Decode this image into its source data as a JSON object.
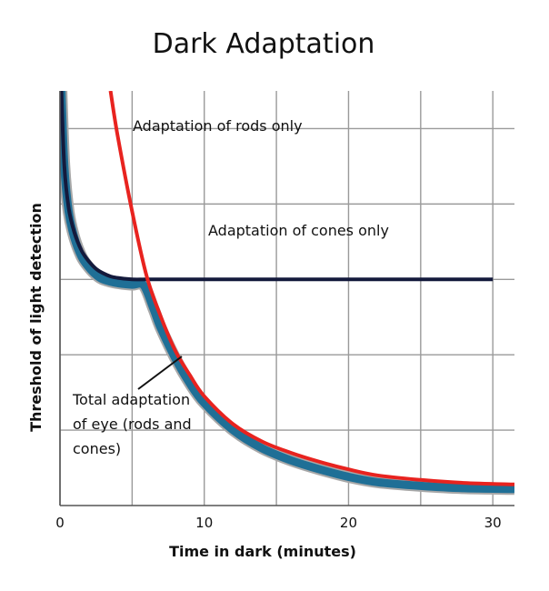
{
  "chart_data": {
    "type": "line",
    "title": "Dark Adaptation",
    "xlabel": "Time in dark (minutes)",
    "ylabel": "Threshold of light detection",
    "xlim": [
      0,
      31.5
    ],
    "ylim": [
      0,
      5.5
    ],
    "x_ticks": [
      0,
      10,
      20,
      30
    ],
    "x_grid": [
      0,
      5,
      10,
      15,
      20,
      25,
      30
    ],
    "y_grid": [
      1,
      2,
      3,
      4,
      5
    ],
    "grid": true,
    "y_tick_labels": false,
    "series": [
      {
        "name": "Adaptation of cones only",
        "color": "#141a3c",
        "x": [
          0.1,
          0.3,
          0.6,
          1,
          1.5,
          2,
          2.5,
          3,
          3.5,
          4,
          5,
          6,
          8,
          10,
          15,
          20,
          25,
          30
        ],
        "y": [
          5.5,
          4.5,
          3.95,
          3.62,
          3.38,
          3.24,
          3.14,
          3.08,
          3.04,
          3.02,
          3.0,
          3.0,
          3.0,
          3.0,
          3.0,
          3.0,
          3.0,
          3.0
        ]
      },
      {
        "name": "Adaptation of rods only",
        "color": "#e8231f",
        "x": [
          3.5,
          4,
          5,
          6,
          7,
          8,
          9,
          10,
          12,
          14,
          16,
          18,
          20,
          22,
          25,
          28,
          31.5
        ],
        "y": [
          5.5,
          4.9,
          3.9,
          3.05,
          2.5,
          2.05,
          1.73,
          1.45,
          1.08,
          0.85,
          0.7,
          0.58,
          0.48,
          0.4,
          0.34,
          0.3,
          0.28
        ]
      },
      {
        "name": "Total adaptation of eye (rods and cones)",
        "color": "#1f6f96",
        "x": [
          0.1,
          0.3,
          0.6,
          1,
          1.5,
          2,
          2.5,
          3,
          4,
          5,
          5.8,
          6.5,
          7,
          8,
          9,
          10,
          12,
          14,
          16,
          18,
          20,
          22,
          25,
          28,
          31.5
        ],
        "y": [
          5.5,
          4.5,
          3.9,
          3.55,
          3.3,
          3.16,
          3.06,
          3.0,
          2.95,
          2.93,
          2.92,
          2.6,
          2.35,
          1.95,
          1.62,
          1.36,
          1.0,
          0.76,
          0.6,
          0.48,
          0.38,
          0.31,
          0.26,
          0.23,
          0.22
        ]
      }
    ],
    "annotations": [
      {
        "text": "Adaptation of rods only"
      },
      {
        "text": "Adaptation of cones only"
      },
      {
        "lines": [
          "Total adaptation",
          "of eye (rods and",
          "cones)"
        ],
        "points_to": "Total adaptation of eye (rods and cones)"
      }
    ]
  }
}
